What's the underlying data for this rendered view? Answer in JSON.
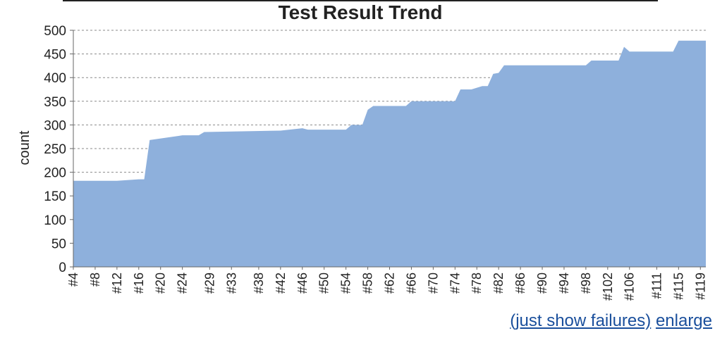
{
  "chart_data": {
    "type": "area",
    "title": "Test Result Trend",
    "xlabel": "",
    "ylabel": "count",
    "ylim": [
      0,
      500
    ],
    "yticks": [
      0,
      50,
      100,
      150,
      200,
      250,
      300,
      350,
      400,
      450,
      500
    ],
    "grid": true,
    "x_tick_labels": [
      "#4",
      "#8",
      "#12",
      "#16",
      "#20",
      "#24",
      "#29",
      "#33",
      "#38",
      "#42",
      "#46",
      "#50",
      "#54",
      "#58",
      "#62",
      "#66",
      "#70",
      "#74",
      "#78",
      "#82",
      "#86",
      "#90",
      "#94",
      "#98",
      "#102",
      "#106",
      "#111",
      "#115",
      "#119"
    ],
    "series": [
      {
        "color": "#8eb0dc",
        "x": [
          "#4",
          "#12",
          "#16",
          "#17",
          "#18",
          "#24",
          "#27",
          "#28",
          "#42",
          "#46",
          "#47",
          "#48",
          "#54",
          "#55",
          "#57",
          "#58",
          "#59",
          "#65",
          "#66",
          "#74",
          "#75",
          "#77",
          "#79",
          "#80",
          "#81",
          "#82",
          "#83",
          "#85",
          "#98",
          "#99",
          "#104",
          "#105",
          "#106",
          "#107",
          "#114",
          "#115",
          "#120"
        ],
        "values": [
          182,
          182,
          185,
          185,
          268,
          278,
          278,
          285,
          288,
          293,
          290,
          290,
          290,
          300,
          300,
          332,
          340,
          340,
          350,
          350,
          375,
          375,
          382,
          382,
          408,
          410,
          426,
          426,
          426,
          436,
          436,
          465,
          455,
          455,
          455,
          478,
          478
        ]
      }
    ]
  },
  "links": {
    "failures": "(just show failures)",
    "enlarge": "enlarge"
  }
}
